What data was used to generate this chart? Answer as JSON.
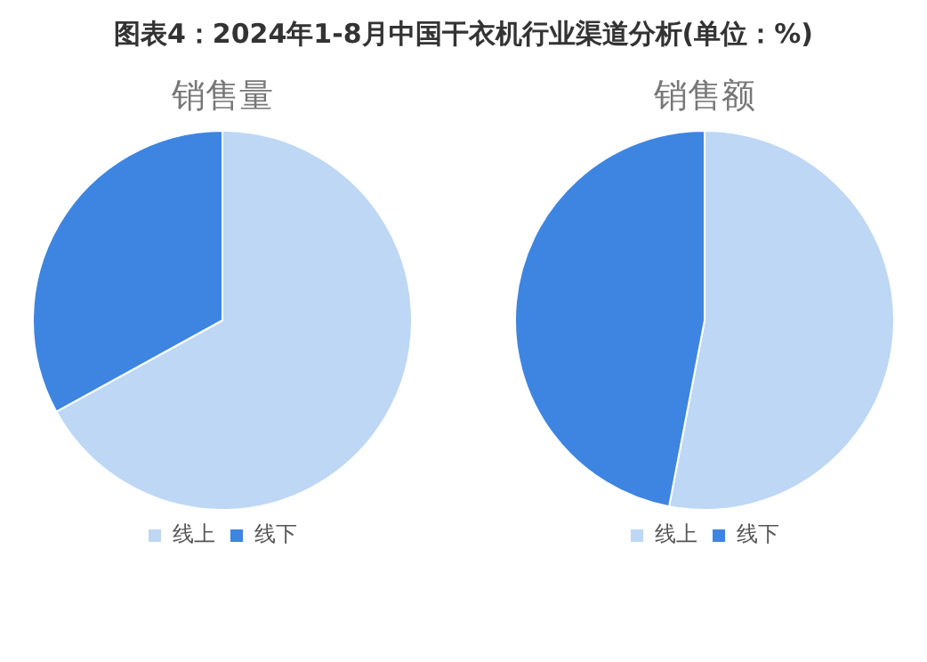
{
  "chart_data": [
    {
      "type": "pie",
      "title": "图表4：2024年1-8月中国干衣机行业渠道分析(单位：%)",
      "subtitle": "销售量",
      "categories": [
        "线上",
        "线下"
      ],
      "values": [
        67,
        33
      ],
      "colors": [
        "#bdd7f5",
        "#3d85e0"
      ],
      "legend": "bottom"
    },
    {
      "type": "pie",
      "subtitle": "销售额",
      "categories": [
        "线上",
        "线下"
      ],
      "values": [
        53,
        47
      ],
      "colors": [
        "#bdd7f5",
        "#3d85e0"
      ],
      "legend": "bottom"
    }
  ]
}
